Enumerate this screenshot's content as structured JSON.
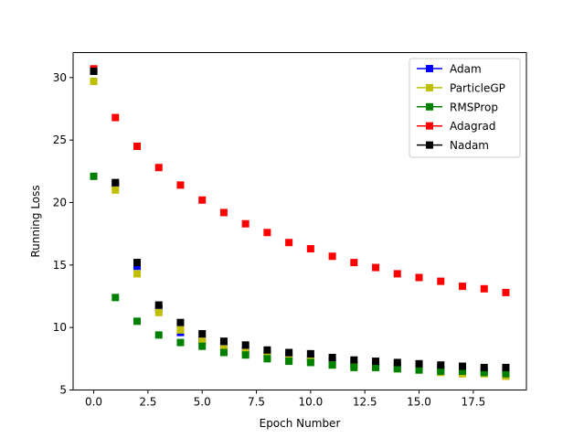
{
  "chart_data": {
    "type": "scatter",
    "title": "",
    "xlabel": "Epoch Number",
    "ylabel": "Running Loss",
    "xlim": [
      -0.95,
      19.95
    ],
    "ylim": [
      5,
      32
    ],
    "grid": false,
    "legend_position": "top-right",
    "x": [
      0,
      1,
      2,
      3,
      4,
      5,
      6,
      7,
      8,
      9,
      10,
      11,
      12,
      13,
      14,
      15,
      16,
      17,
      18,
      19
    ],
    "x_ticks": [
      0.0,
      2.5,
      5.0,
      7.5,
      10.0,
      12.5,
      15.0,
      17.5
    ],
    "x_tick_labels": [
      "0.0",
      "2.5",
      "5.0",
      "7.5",
      "10.0",
      "12.5",
      "15.0",
      "17.5"
    ],
    "y_ticks": [
      5,
      10,
      15,
      20,
      25,
      30
    ],
    "y_tick_labels": [
      "5",
      "10",
      "15",
      "20",
      "25",
      "30"
    ],
    "series": [
      {
        "name": "Adam",
        "color": "#0000ff",
        "marker": "square",
        "values": [
          30.5,
          21.5,
          14.9,
          11.5,
          9.6,
          9.0,
          8.5,
          8.2,
          7.9,
          7.7,
          7.5,
          7.3,
          7.1,
          7.0,
          6.9,
          6.8,
          6.7,
          6.6,
          6.5,
          6.4
        ]
      },
      {
        "name": "ParticleGP",
        "color": "#bfbf00",
        "marker": "square",
        "values": [
          29.7,
          21.0,
          14.3,
          11.2,
          9.8,
          8.9,
          8.3,
          8.0,
          7.7,
          7.4,
          7.3,
          7.0,
          6.9,
          6.8,
          6.7,
          6.6,
          6.4,
          6.3,
          6.3,
          6.1
        ]
      },
      {
        "name": "RMSProp",
        "color": "#008000",
        "marker": "square",
        "values": [
          22.1,
          12.4,
          10.5,
          9.4,
          8.8,
          8.5,
          8.0,
          7.8,
          7.5,
          7.3,
          7.2,
          7.0,
          6.8,
          6.8,
          6.7,
          6.6,
          6.5,
          6.5,
          6.4,
          6.3
        ]
      },
      {
        "name": "Adagrad",
        "color": "#ff0000",
        "marker": "square",
        "values": [
          30.7,
          26.8,
          24.5,
          22.8,
          21.4,
          20.2,
          19.2,
          18.3,
          17.6,
          16.8,
          16.3,
          15.7,
          15.2,
          14.8,
          14.3,
          14.0,
          13.7,
          13.3,
          13.1,
          12.8
        ]
      },
      {
        "name": "Nadam",
        "color": "#000000",
        "marker": "square",
        "values": [
          30.5,
          21.6,
          15.2,
          11.8,
          10.4,
          9.5,
          8.9,
          8.6,
          8.2,
          8.0,
          7.9,
          7.6,
          7.4,
          7.3,
          7.2,
          7.1,
          7.0,
          6.9,
          6.8,
          6.8
        ]
      }
    ]
  }
}
